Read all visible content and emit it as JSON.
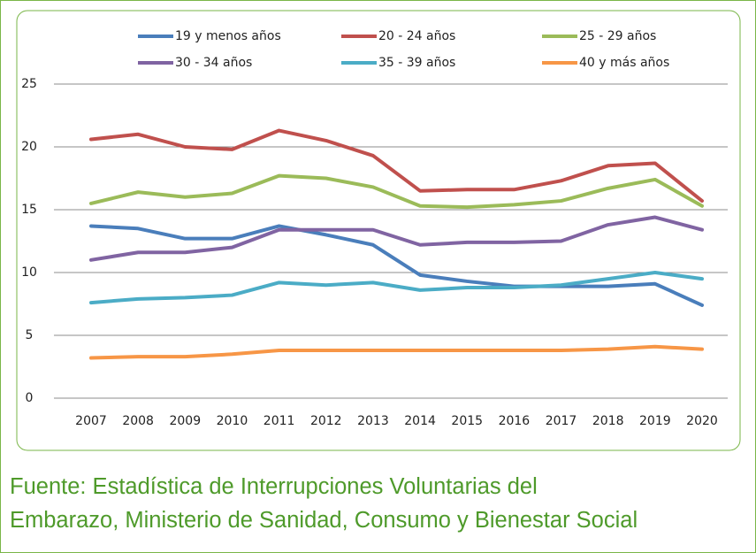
{
  "chart_data": {
    "type": "line",
    "categories": [
      "2007",
      "2008",
      "2009",
      "2010",
      "2011",
      "2012",
      "2013",
      "2014",
      "2015",
      "2016",
      "2017",
      "2018",
      "2019",
      "2020"
    ],
    "series": [
      {
        "name": "19 y menos años",
        "color": "#4a7ebb",
        "values": [
          13.7,
          13.5,
          12.7,
          12.7,
          13.7,
          13.0,
          12.2,
          9.8,
          9.3,
          8.9,
          8.9,
          8.9,
          9.1,
          7.4
        ]
      },
      {
        "name": "20 - 24 años",
        "color": "#c0504d",
        "values": [
          20.6,
          21.0,
          20.0,
          19.8,
          21.3,
          20.5,
          19.3,
          16.5,
          16.6,
          16.6,
          17.3,
          18.5,
          18.7,
          15.7
        ]
      },
      {
        "name": "25 - 29 años",
        "color": "#9bbb59",
        "values": [
          15.5,
          16.4,
          16.0,
          16.3,
          17.7,
          17.5,
          16.8,
          15.3,
          15.2,
          15.4,
          15.7,
          16.7,
          17.4,
          15.3
        ]
      },
      {
        "name": "30 - 34 años",
        "color": "#8064a2",
        "values": [
          11.0,
          11.6,
          11.6,
          12.0,
          13.4,
          13.4,
          13.4,
          12.2,
          12.4,
          12.4,
          12.5,
          13.8,
          14.4,
          13.4
        ]
      },
      {
        "name": "35 - 39 años",
        "color": "#4bacc6",
        "values": [
          7.6,
          7.9,
          8.0,
          8.2,
          9.2,
          9.0,
          9.2,
          8.6,
          8.8,
          8.8,
          9.0,
          9.5,
          10.0,
          9.5
        ]
      },
      {
        "name": "40 y más años",
        "color": "#f79646",
        "values": [
          3.2,
          3.3,
          3.3,
          3.5,
          3.8,
          3.8,
          3.8,
          3.8,
          3.8,
          3.8,
          3.8,
          3.9,
          4.1,
          3.9
        ]
      }
    ],
    "ylim": [
      0,
      25
    ],
    "yticks": [
      0,
      5,
      10,
      15,
      20,
      25
    ],
    "grid": true,
    "legend": "top"
  },
  "source": [
    "Fuente: Estadística de Interrupciones Voluntarias del",
    "Embarazo, Ministerio de Sanidad, Consumo y Bienestar Social"
  ]
}
